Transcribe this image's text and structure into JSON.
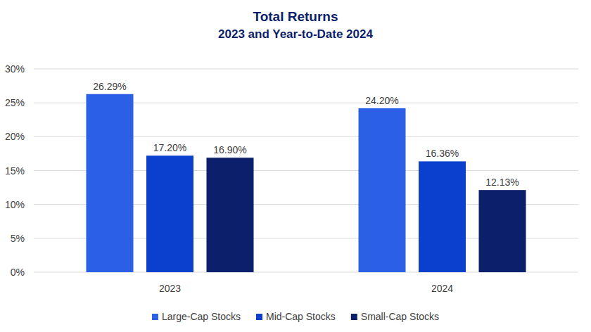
{
  "chart_data": {
    "type": "bar",
    "title": "Total Returns",
    "subtitle": "2023 and Year-to-Date 2024",
    "categories": [
      "2023",
      "2024"
    ],
    "series": [
      {
        "name": "Large-Cap Stocks",
        "color": "#2a5fe6",
        "values": [
          26.29,
          24.2
        ],
        "value_labels": [
          "26.29%",
          "24.20%"
        ]
      },
      {
        "name": "Mid-Cap Stocks",
        "color": "#0b40cf",
        "values": [
          17.2,
          16.36
        ],
        "value_labels": [
          "17.20%",
          "16.36%"
        ]
      },
      {
        "name": "Small-Cap Stocks",
        "color": "#0c1f6b",
        "values": [
          16.9,
          12.13
        ],
        "value_labels": [
          "16.90%",
          "12.13%"
        ]
      }
    ],
    "ylim": [
      0,
      30
    ],
    "yticks": [
      {
        "value": 0,
        "label": "0%"
      },
      {
        "value": 5,
        "label": "5%"
      },
      {
        "value": 10,
        "label": "10%"
      },
      {
        "value": 15,
        "label": "15%"
      },
      {
        "value": 20,
        "label": "20%"
      },
      {
        "value": 25,
        "label": "25%"
      },
      {
        "value": 30,
        "label": "30%"
      }
    ],
    "grid": true,
    "legend": "bottom",
    "data_labels": true
  }
}
